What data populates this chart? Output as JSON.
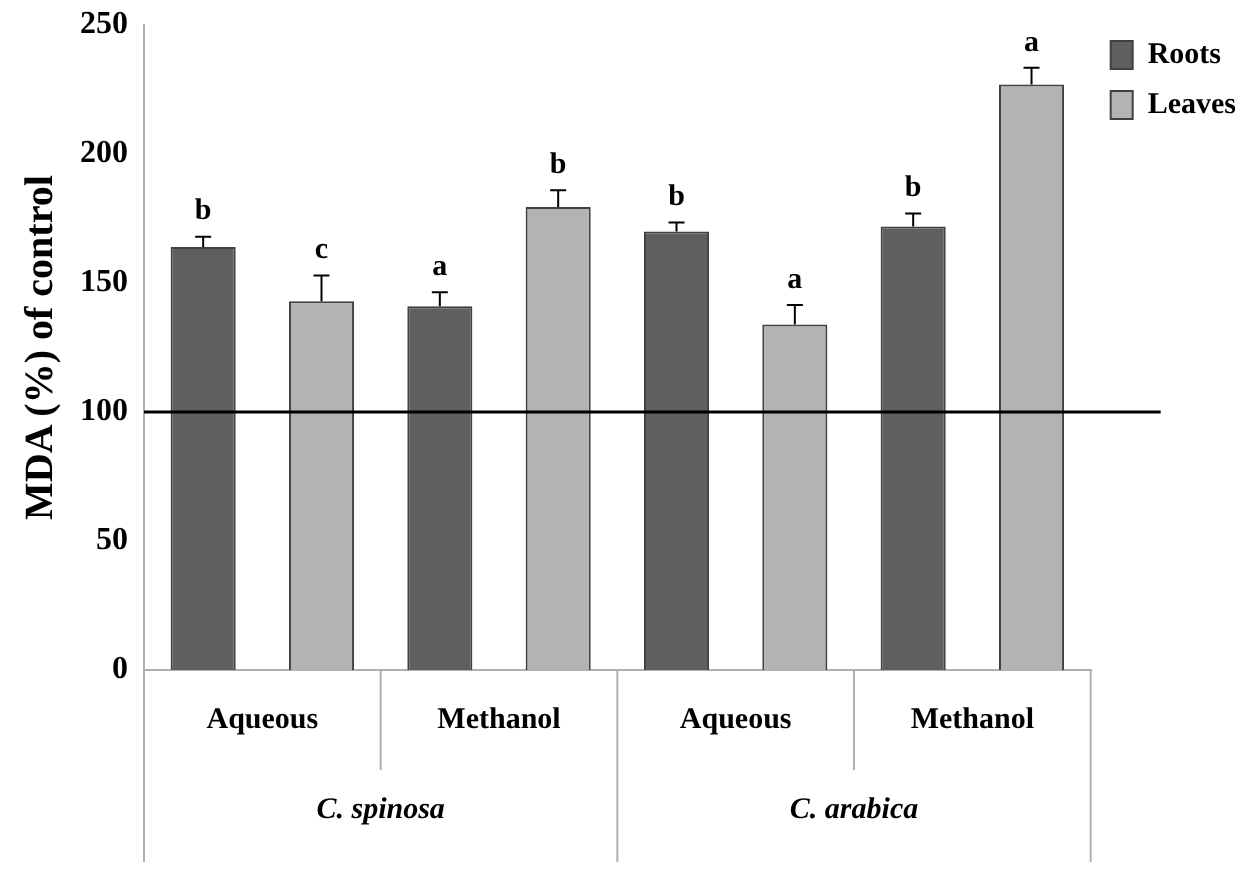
{
  "chart_data": {
    "type": "bar",
    "ylabel": "MDA (%) of control",
    "categories": [
      "Aqueous",
      "Methanol",
      "Aqueous",
      "Methanol"
    ],
    "series": [
      {
        "name": "Roots",
        "color": "#5f5f5f",
        "values": [
          164,
          141,
          170,
          172
        ],
        "errors": [
          [
            164,
            168
          ],
          [
            141,
            146.5
          ],
          [
            170,
            173.5
          ],
          [
            172,
            177
          ]
        ],
        "value_labels": [
          "b",
          "a",
          "b",
          "b"
        ]
      },
      {
        "name": "Leaves",
        "color": "#b3b3b3",
        "values": [
          143,
          179.5,
          134,
          227
        ],
        "errors": [
          [
            143,
            153
          ],
          [
            179.5,
            186
          ],
          [
            134,
            141.5
          ],
          [
            227,
            233.5
          ]
        ],
        "value_labels": [
          "c",
          "b",
          "a",
          "a"
        ]
      }
    ],
    "annotations": [
      "C. spinosa",
      "C. arabica"
    ],
    "ref_lines": [
      {
        "axis": "y",
        "value": 100,
        "color": "#000000"
      }
    ],
    "ylim": [
      0,
      250
    ],
    "yticks": [
      0,
      50,
      100,
      150,
      200,
      250
    ],
    "grid": false,
    "legend": "top right"
  }
}
